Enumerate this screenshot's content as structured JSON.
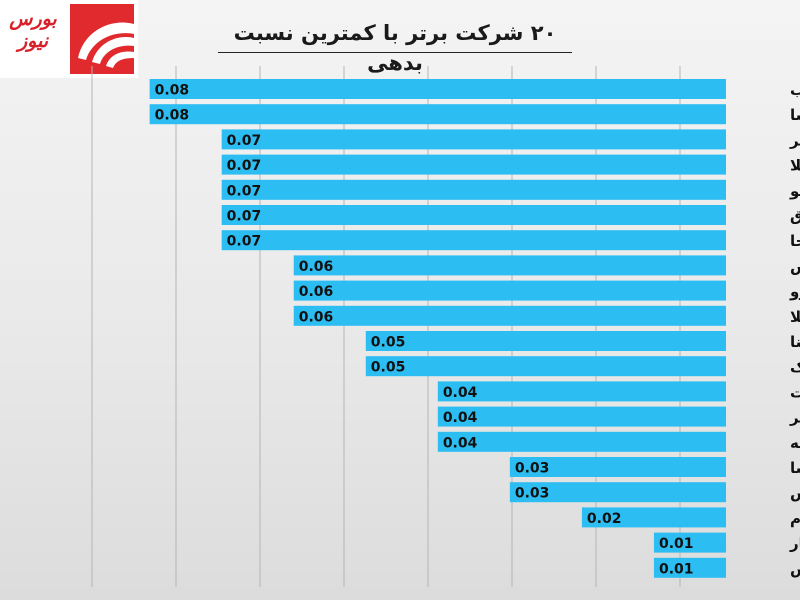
{
  "brand": {
    "logo_text": "بورس نیوز"
  },
  "chart_data": {
    "type": "bar",
    "title": "۲۰ شرکت برتر با کمترین نسبت بدهی",
    "xlabel": "",
    "ylabel": "",
    "orientation": "horizontal",
    "grid": true,
    "bar_color": "#2cbdf2",
    "categories": [
      "داراب",
      "فسا",
      "وهنر",
      "بمیلا",
      "تاپیکو",
      "وبرق",
      "دسبحا",
      "گکیش",
      "کازرو",
      "اعتلا",
      "وصنا",
      "ریشمک",
      "وصنعت",
      "سدبیر",
      "وسپه",
      "وپسا",
      "وارزش",
      "ثنام",
      "واعتبار",
      "پردیس"
    ],
    "values": [
      0.08,
      0.08,
      0.07,
      0.07,
      0.07,
      0.07,
      0.07,
      0.06,
      0.06,
      0.06,
      0.05,
      0.05,
      0.04,
      0.04,
      0.04,
      0.03,
      0.03,
      0.02,
      0.01,
      0.01
    ],
    "value_labels": [
      "0.08",
      "0.08",
      "0.07",
      "0.07",
      "0.07",
      "0.07",
      "0.07",
      "0.06",
      "0.06",
      "0.06",
      "0.05",
      "0.05",
      "0.04",
      "0.04",
      "0.04",
      "0.03",
      "0.03",
      "0.02",
      "0.01",
      "0.01"
    ]
  }
}
